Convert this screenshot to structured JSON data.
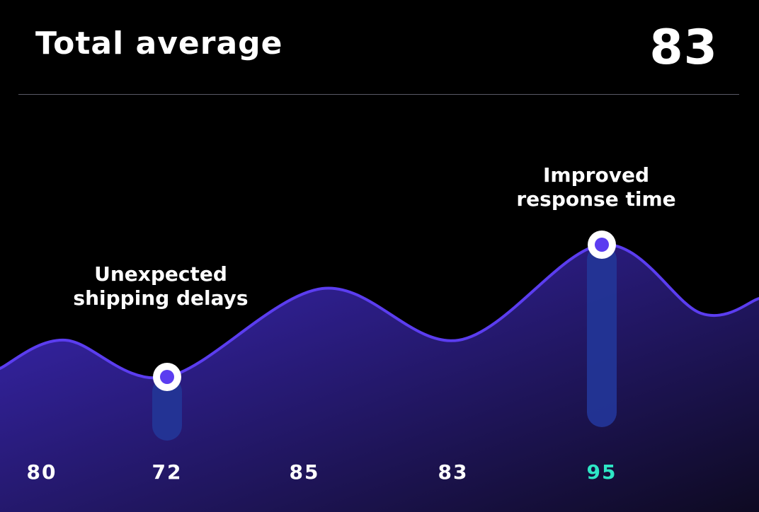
{
  "header": {
    "title": "Total average",
    "total_value": "83"
  },
  "chart_data": {
    "type": "area",
    "title": "Total average",
    "categories": [
      "80",
      "72",
      "85",
      "83",
      "95"
    ],
    "values": [
      80,
      72,
      85,
      83,
      95
    ],
    "highlight_index": 4,
    "annotations": [
      {
        "index": 1,
        "lines": [
          "Unexpected",
          "shipping delays"
        ]
      },
      {
        "index": 4,
        "lines": [
          "Improved",
          "response time"
        ]
      }
    ],
    "colors": {
      "line": "#5b3df0",
      "area_start": "#3b27b8",
      "area_end": "#0e0a22",
      "marker_ring": "#ffffff",
      "marker_dot": "#5b3df0",
      "annotation_bar": "#233596",
      "label": "#ffffff",
      "highlight_label": "#2ee6c5"
    }
  }
}
